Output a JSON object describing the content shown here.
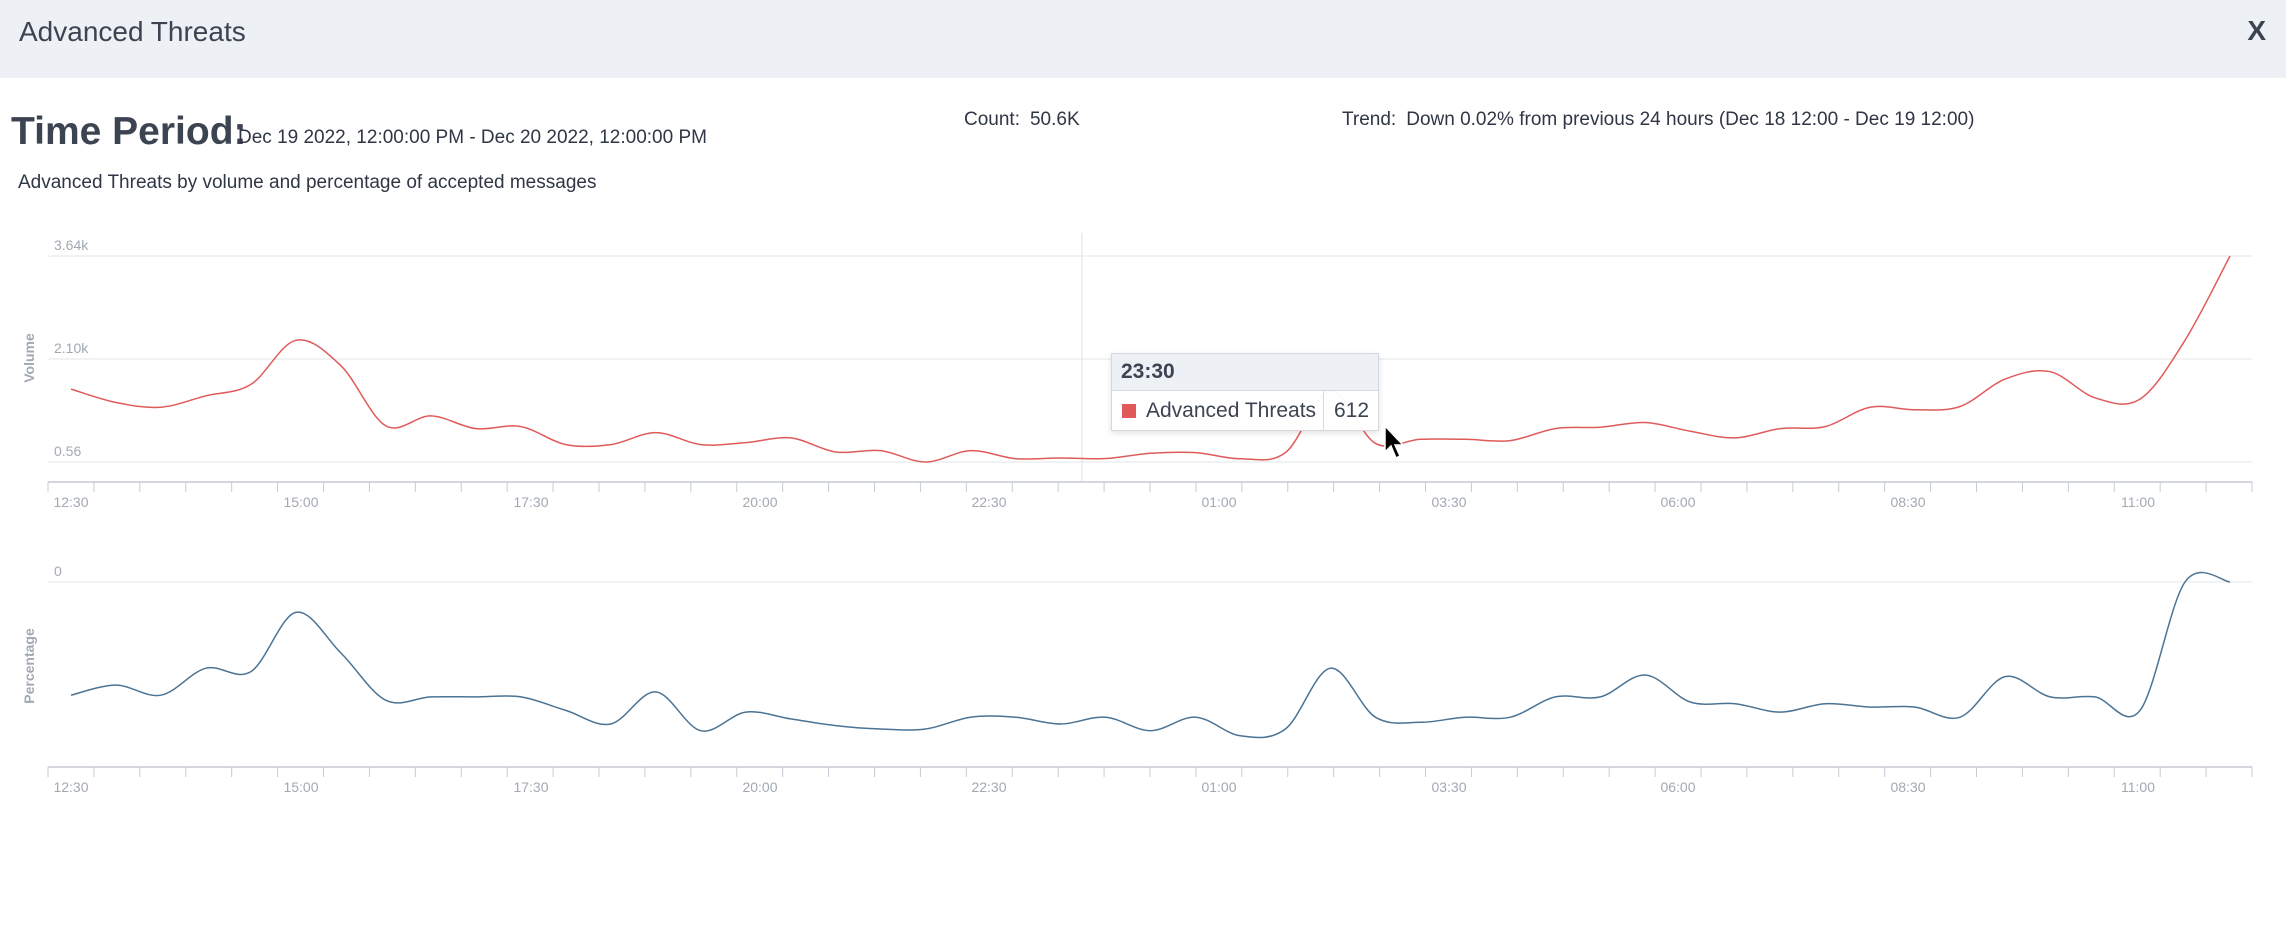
{
  "header": {
    "title": "Advanced Threats",
    "close_label": "X"
  },
  "summary": {
    "time_period_label": "Time Period:",
    "time_period_value": "Dec 19 2022, 12:00:00 PM - Dec 20 2022, 12:00:00 PM",
    "count_label": "Count:",
    "count_value": "50.6K",
    "trend_label": "Trend:",
    "trend_value": "Down 0.02% from previous 24 hours (Dec 18 12:00 - Dec 19 12:00)"
  },
  "subtitle": "Advanced Threats by volume and percentage of accepted messages",
  "tooltip": {
    "time": "23:30",
    "series": "Advanced Threats",
    "value": "612"
  },
  "chart_data": [
    {
      "type": "line",
      "ylabel": "Volume",
      "y_tick_labels": [
        "3.64k",
        "2.10k",
        "0.56"
      ],
      "x_tick_labels": [
        "12:30",
        "15:00",
        "17:30",
        "20:00",
        "22:30",
        "01:00",
        "03:30",
        "06:00",
        "08:30",
        "11:00"
      ],
      "ylim": [
        560,
        3640
      ],
      "grid": true,
      "color": "#e05a5a",
      "x": [
        "12:00",
        "12:30",
        "13:00",
        "13:30",
        "14:00",
        "14:30",
        "15:00",
        "15:30",
        "16:00",
        "16:30",
        "17:00",
        "17:30",
        "18:00",
        "18:30",
        "19:00",
        "19:30",
        "20:00",
        "20:30",
        "21:00",
        "21:30",
        "22:00",
        "22:30",
        "23:00",
        "23:30",
        "00:00",
        "00:30",
        "01:00",
        "01:30",
        "02:00",
        "02:30",
        "03:00",
        "03:30",
        "04:00",
        "04:30",
        "05:00",
        "05:30",
        "06:00",
        "06:30",
        "07:00",
        "07:30",
        "08:00",
        "08:30",
        "09:00",
        "09:30",
        "10:00",
        "10:30",
        "11:00",
        "11:30",
        "12:00"
      ],
      "series": [
        {
          "name": "Advanced Threats",
          "values": [
            1650,
            1450,
            1380,
            1550,
            1720,
            2380,
            2000,
            1100,
            1250,
            1060,
            1090,
            820,
            820,
            1000,
            820,
            850,
            920,
            710,
            730,
            560,
            730,
            610,
            620,
            612,
            690,
            700,
            610,
            700,
            1620,
            840,
            900,
            900,
            880,
            1060,
            1080,
            1150,
            1020,
            920,
            1060,
            1090,
            1380,
            1340,
            1390,
            1800,
            1910,
            1520,
            1500,
            2380,
            3640
          ]
        }
      ]
    },
    {
      "type": "line",
      "ylabel": "Percentage",
      "y_tick_labels": [
        "0"
      ],
      "x_tick_labels": [
        "12:30",
        "15:00",
        "17:30",
        "20:00",
        "22:30",
        "01:00",
        "03:30",
        "06:00",
        "08:30",
        "11:00"
      ],
      "grid": true,
      "color": "#4a7394",
      "x": [
        "12:00",
        "12:30",
        "13:00",
        "13:30",
        "14:00",
        "14:30",
        "15:00",
        "15:30",
        "16:00",
        "16:30",
        "17:00",
        "17:30",
        "18:00",
        "18:30",
        "19:00",
        "19:30",
        "20:00",
        "20:30",
        "21:00",
        "21:30",
        "22:00",
        "22:30",
        "23:00",
        "23:30",
        "00:00",
        "00:30",
        "01:00",
        "01:30",
        "02:00",
        "02:30",
        "03:00",
        "03:30",
        "04:00",
        "04:30",
        "05:00",
        "05:30",
        "06:00",
        "06:30",
        "07:00",
        "07:30",
        "08:00",
        "08:30",
        "09:00",
        "09:30",
        "10:00",
        "10:30",
        "11:00",
        "11:30",
        "12:00"
      ],
      "series": [
        {
          "name": "Advanced Threats",
          "values": [
            0.33,
            0.39,
            0.33,
            0.49,
            0.47,
            0.82,
            0.58,
            0.3,
            0.32,
            0.32,
            0.32,
            0.24,
            0.16,
            0.35,
            0.12,
            0.23,
            0.19,
            0.15,
            0.13,
            0.13,
            0.2,
            0.2,
            0.16,
            0.2,
            0.12,
            0.2,
            0.09,
            0.13,
            0.49,
            0.2,
            0.17,
            0.2,
            0.2,
            0.32,
            0.32,
            0.45,
            0.29,
            0.28,
            0.23,
            0.28,
            0.26,
            0.26,
            0.2,
            0.44,
            0.32,
            0.32,
            0.24,
            1.0,
            1.0
          ]
        }
      ]
    }
  ]
}
